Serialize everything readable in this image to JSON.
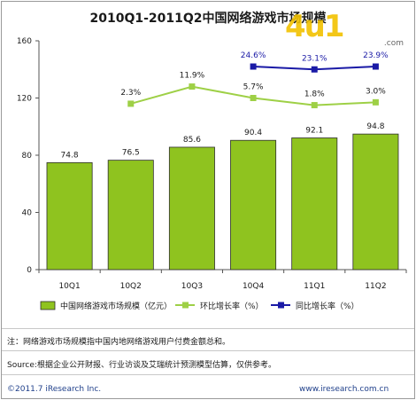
{
  "chart_data": {
    "type": "bar",
    "title": "2010Q1-2011Q2中国网络游戏市场规模",
    "categories": [
      "10Q1",
      "10Q2",
      "10Q3",
      "10Q4",
      "11Q1",
      "11Q2"
    ],
    "ylim": [
      0,
      160
    ],
    "yticks": [
      0,
      40,
      80,
      120,
      160
    ],
    "series": [
      {
        "name": "中国网络游戏市场规模（亿元）",
        "type": "bar",
        "color": "#8fc31f",
        "values": [
          74.8,
          76.5,
          85.6,
          90.4,
          92.1,
          94.8
        ],
        "labels": [
          "74.8",
          "76.5",
          "85.6",
          "90.4",
          "92.1",
          "94.8"
        ]
      },
      {
        "name": "环比增长率（%）",
        "type": "line",
        "color": "#9ed046",
        "plot_values": [
          null,
          116,
          128,
          120,
          115,
          117
        ],
        "labels": [
          null,
          "2.3%",
          "11.9%",
          "5.7%",
          "1.8%",
          "3.0%"
        ]
      },
      {
        "name": "同比增长率（%）",
        "type": "line",
        "color": "#1a1aa6",
        "plot_values": [
          null,
          null,
          null,
          142,
          140,
          142
        ],
        "labels": [
          null,
          null,
          null,
          "24.6%",
          "23.1%",
          "23.9%"
        ]
      }
    ],
    "grid": false,
    "legend": "bottom"
  },
  "notes": {
    "note": "注：网络游戏市场规模指中国内地网络游戏用户付费金额总和。",
    "source": "Source:根据企业公开财报、行业访谈及艾瑞统计预测模型估算，仅供参考。",
    "copyright": "©2011.7 iResearch Inc.",
    "website": "www.iresearch.com.cn"
  },
  "logo": {
    "text": "4u1",
    "domain": ".com"
  }
}
